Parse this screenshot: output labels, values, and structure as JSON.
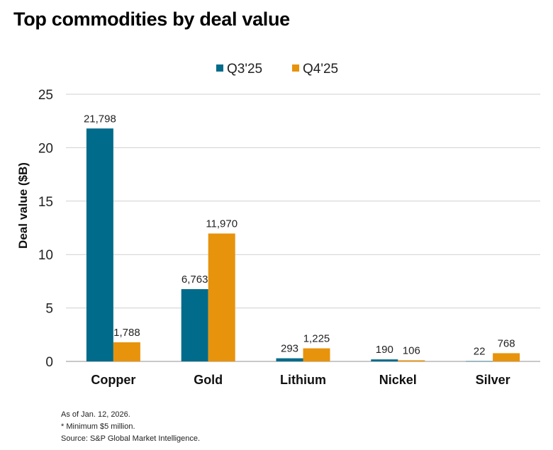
{
  "title": "Top commodities by deal value",
  "footnotes": [
    "As of Jan. 12, 2026.",
    "* Minimum $5 million.",
    "Source: S&P Global Market Intelligence."
  ],
  "chart_data": {
    "type": "bar",
    "title": "Top commodities by deal value",
    "xlabel": "",
    "ylabel": "Deal value ($B)",
    "ylim": [
      0,
      25
    ],
    "yticks": [
      0,
      5,
      10,
      15,
      20,
      25
    ],
    "grid": true,
    "legend_position": "top-right",
    "categories": [
      "Copper",
      "Gold",
      "Lithium",
      "Nickel",
      "Silver"
    ],
    "series": [
      {
        "name": "Q3'25",
        "color": "#006b8a",
        "values": [
          21.798,
          6.763,
          0.293,
          0.19,
          0.022
        ],
        "labels": [
          "21,798",
          "6,763",
          "293",
          "190",
          "22"
        ]
      },
      {
        "name": "Q4'25",
        "color": "#e8930c",
        "values": [
          1.788,
          11.97,
          1.225,
          0.106,
          0.768
        ],
        "labels": [
          "1,788",
          "11,970",
          "1,225",
          "106",
          "768"
        ]
      }
    ]
  }
}
